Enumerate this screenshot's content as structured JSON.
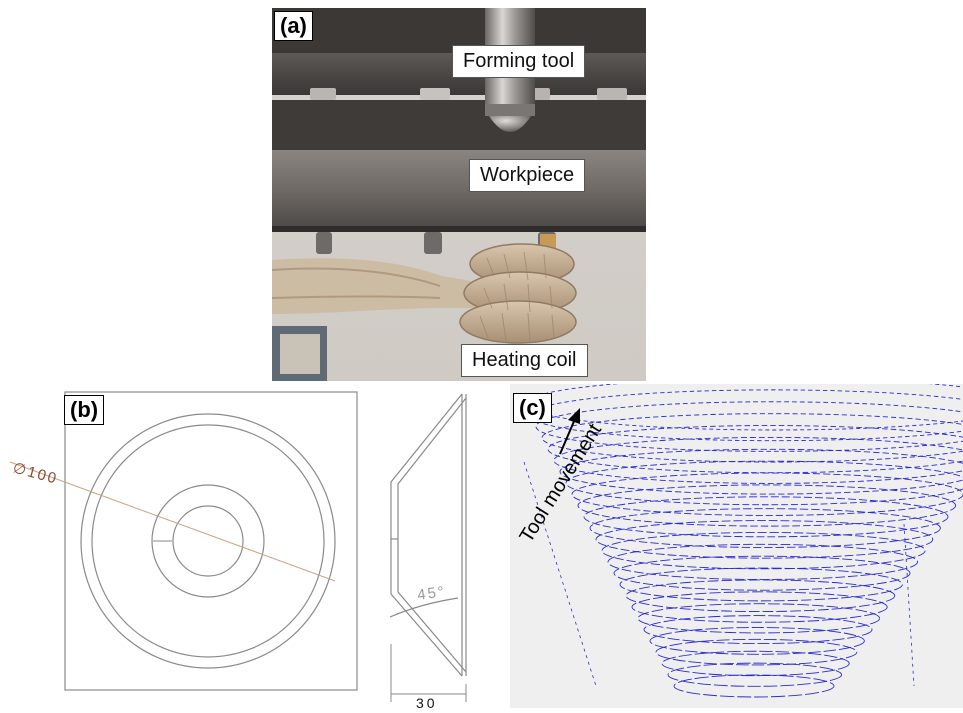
{
  "panels": {
    "a": {
      "label": "(a)",
      "callouts": {
        "tool": "Forming tool",
        "workpiece": "Workpiece",
        "coil": "Heating coil"
      }
    },
    "b": {
      "label": "(b)",
      "dimensions": {
        "diameter": "∅100",
        "angle": "45°",
        "depth": "30"
      }
    },
    "c": {
      "label": "(c)",
      "arrow_text": "Tool movement"
    }
  },
  "colors": {
    "toolpath": "#2a2ad6",
    "drawing_line": "#8a8a8a",
    "dimension_text": "#8b4a2a",
    "plot_bg": "#efefef"
  }
}
